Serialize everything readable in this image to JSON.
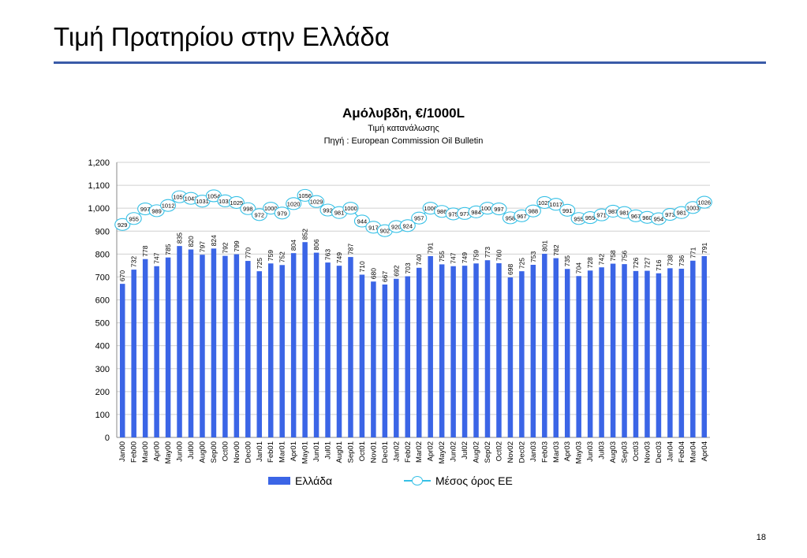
{
  "slide": {
    "title": "Τιμή Πρατηρίου στην Ελλάδα",
    "page_number": "18"
  },
  "colors": {
    "bar": "#3b65e6",
    "line": "#36c0e6",
    "rule": "#3a5ba8"
  },
  "chart_data": {
    "type": "bar",
    "title": "Αμόλυβδη, €/1000L",
    "subtitle_lines": [
      "Τιμή κατανάλωσης",
      "Πηγή : European Commission Oil Bulletin"
    ],
    "ylim": [
      0,
      1200
    ],
    "yticks": [
      "0",
      "100",
      "200",
      "300",
      "400",
      "500",
      "600",
      "700",
      "800",
      "900",
      "1,000",
      "1,100",
      "1,200"
    ],
    "grid": true,
    "legend_position": "bottom",
    "categories": [
      "Jan00",
      "Feb00",
      "Mar00",
      "Apr00",
      "May00",
      "Jun00",
      "Jul00",
      "Aug00",
      "Sep00",
      "Oct00",
      "Nov00",
      "Dec00",
      "Jan01",
      "Feb01",
      "Mar01",
      "Apr01",
      "May01",
      "Jun01",
      "Jul01",
      "Aug01",
      "Sep01",
      "Oct01",
      "Nov01",
      "Dec01",
      "Jan02",
      "Feb02",
      "Mar02",
      "Apr02",
      "May02",
      "Jun02",
      "Jul02",
      "Aug02",
      "Sep02",
      "Oct02",
      "Nov02",
      "Dec02",
      "Jan03",
      "Feb03",
      "Mar03",
      "Apr03",
      "May03",
      "Jun03",
      "Jul03",
      "Aug03",
      "Sep03",
      "Oct03",
      "Nov03",
      "Dec03",
      "Jan04",
      "Feb04",
      "Mar04",
      "Apr04"
    ],
    "series": [
      {
        "name": "Ελλάδα",
        "type": "bar",
        "values": [
          670,
          732,
          778,
          747,
          785,
          835,
          820,
          797,
          824,
          792,
          799,
          770,
          725,
          759,
          752,
          804,
          852,
          806,
          763,
          749,
          787,
          710,
          680,
          667,
          692,
          703,
          740,
          791,
          755,
          747,
          749,
          759,
          773,
          760,
          698,
          725,
          753,
          801,
          782,
          735,
          704,
          728,
          742,
          758,
          756,
          726,
          727,
          716,
          738,
          736,
          771,
          791
        ]
      },
      {
        "name": "Μέσος όρος ΕΕ",
        "type": "line",
        "values": [
          929,
          955,
          997,
          989,
          1012,
          1050,
          1043,
          1031,
          1054,
          1032,
          1025,
          998,
          972,
          1000,
          979,
          1020,
          1056,
          1029,
          992,
          981,
          1000,
          944,
          917,
          902,
          920,
          924,
          957,
          1000,
          986,
          975,
          977,
          984,
          1000,
          997,
          958,
          967,
          988,
          1025,
          1017,
          991,
          955,
          959,
          971,
          987,
          981,
          967,
          960,
          954,
          973,
          981,
          1003,
          1026
        ]
      }
    ]
  }
}
